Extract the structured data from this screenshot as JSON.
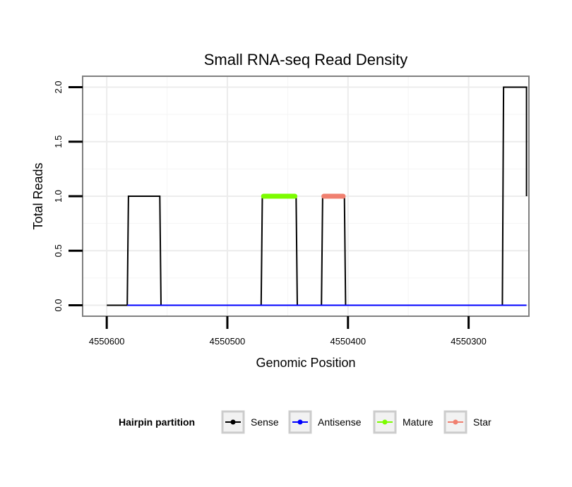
{
  "chart_data": {
    "type": "line",
    "title": "Small RNA-seq Read Density",
    "xlabel": "Genomic Position",
    "ylabel": "Total Reads",
    "xlim": [
      4550620,
      4550250
    ],
    "x_reversed": true,
    "ylim": [
      -0.1,
      2.1
    ],
    "x_ticks": [
      4550600,
      4550500,
      4550400,
      4550300
    ],
    "y_ticks": [
      0.0,
      0.5,
      1.0,
      1.5,
      2.0
    ],
    "x_tick_labels": [
      "4550600",
      "4550500",
      "4550400",
      "4550300"
    ],
    "y_tick_labels": [
      "0.0",
      "0.5",
      "1.0",
      "1.5",
      "2.0"
    ],
    "grid": true,
    "legend": {
      "title": "Hairpin partition",
      "position": "bottom",
      "entries": [
        {
          "name": "Sense",
          "color": "#000000"
        },
        {
          "name": "Antisense",
          "color": "#0000ff"
        },
        {
          "name": "Mature",
          "color": "#7cfc00"
        },
        {
          "name": "Star",
          "color": "#f08070"
        }
      ]
    },
    "series": [
      {
        "name": "Sense",
        "color": "#000000",
        "x": [
          4550600,
          4550583,
          4550582,
          4550556,
          4550555,
          4550472,
          4550471,
          4550443,
          4550442,
          4550422,
          4550421,
          4550403,
          4550402,
          4550272,
          4550271,
          4550252,
          4550252
        ],
        "y": [
          0,
          0,
          1,
          1,
          0,
          0,
          1,
          1,
          0,
          0,
          1,
          1,
          0,
          0,
          2,
          2,
          1
        ]
      },
      {
        "name": "Antisense",
        "color": "#0000ff",
        "x": [
          4550583,
          4550252
        ],
        "y": [
          0,
          0
        ]
      },
      {
        "name": "Mature",
        "color": "#7cfc00",
        "x": [
          4550470,
          4550444
        ],
        "y": [
          1,
          1
        ]
      },
      {
        "name": "Star",
        "color": "#f08070",
        "x": [
          4550420,
          4550404
        ],
        "y": [
          1,
          1
        ]
      }
    ]
  }
}
